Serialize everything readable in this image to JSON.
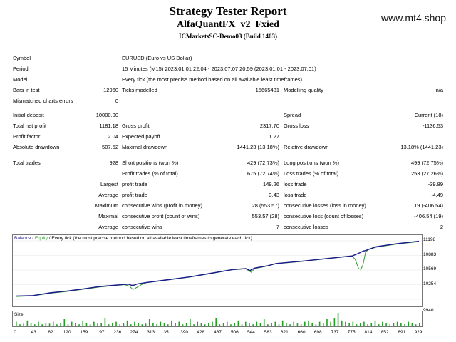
{
  "header": {
    "title": "Strategy Tester Report",
    "expert": "AlfaQuantFX_v2_Fxied",
    "server": "ICMarketsSC-Demo03 (Build 1403)",
    "watermark": "www.mt4.shop"
  },
  "info": {
    "symbol_label": "Symbol",
    "symbol_value": "EURUSD (Euro vs US Dollar)",
    "period_label": "Period",
    "period_value": "15 Minutes (M15) 2023.01.01 22:04 - 2023.07.07 20:59 (2023.01.01 - 2023.07.01)",
    "model_label": "Model",
    "model_value": "Every tick (the most precise method based on all available least timeframes)",
    "bars_label": "Bars in test",
    "bars_value": "12960",
    "ticks_label": "Ticks modelled",
    "ticks_value": "15665481",
    "quality_label": "Modelling quality",
    "quality_value": "n/a",
    "mismatch_label": "Mismatched charts errors",
    "mismatch_value": "0"
  },
  "stats": {
    "initial_deposit_label": "Initial deposit",
    "initial_deposit": "10000.00",
    "spread_label": "Spread",
    "spread": "Current (18)",
    "net_profit_label": "Total net profit",
    "net_profit": "1181.18",
    "gross_profit_label": "Gross profit",
    "gross_profit": "2317.70",
    "gross_loss_label": "Gross loss",
    "gross_loss": "-1136.53",
    "profit_factor_label": "Profit factor",
    "profit_factor": "2.04",
    "expected_payoff_label": "Expected payoff",
    "expected_payoff": "1.27",
    "abs_dd_label": "Absolute drawdown",
    "abs_dd": "507.52",
    "max_dd_label": "Maximal drawdown",
    "max_dd": "1441.23 (13.18%)",
    "rel_dd_label": "Relative drawdown",
    "rel_dd": "13.18% (1441.23)"
  },
  "trades": {
    "total_label": "Total trades",
    "total": "928",
    "short_label": "Short positions (won %)",
    "short": "429 (72.73%)",
    "long_label": "Long positions (won %)",
    "long": "499 (72.75%)",
    "profit_trades_label": "Profit trades (% of total)",
    "profit_trades": "675 (72.74%)",
    "loss_trades_label": "Loss trades (% of total)",
    "loss_trades": "253 (27.26%)",
    "largest_label": "Largest",
    "avg_label": "Average",
    "max_label": "Maximum",
    "maximal_label": "Maximal",
    "average2_label": "Average",
    "profit_trade_label": "profit trade",
    "loss_trade_label": "loss trade",
    "largest_profit": "149.26",
    "largest_loss": "-39.89",
    "avg_profit": "3.43",
    "avg_loss": "-4.49",
    "cons_wins_label": "consecutive wins (profit in money)",
    "cons_wins": "28 (553.57)",
    "cons_losses_label": "consecutive losses (loss in money)",
    "cons_losses": "19 (-406.54)",
    "cons_profit_label": "consecutive profit (count of wins)",
    "cons_profit": "553.57 (28)",
    "cons_loss_label": "consecutive loss (count of losses)",
    "cons_loss": "-406.54 (19)",
    "avg_cons_wins_label": "consecutive wins",
    "avg_cons_wins": "7",
    "avg_cons_losses_label": "consecutive losses",
    "avg_cons_losses": "2"
  },
  "chart_caption": {
    "balance": "Balance",
    "sep": " / ",
    "equity": "Equity",
    "rest": " / Every tick (the most precise method based on all available least timeframes to generate each tick)"
  },
  "volume_caption": "Size",
  "colors": {
    "balance": "#1a1a8c",
    "equity": "#2a9a2a",
    "volume": "#22a022"
  },
  "chart_data": {
    "type": "line",
    "x_ticks": [
      "0",
      "43",
      "82",
      "120",
      "159",
      "197",
      "236",
      "274",
      "313",
      "351",
      "390",
      "428",
      "467",
      "506",
      "544",
      "583",
      "621",
      "660",
      "698",
      "737",
      "775",
      "814",
      "852",
      "891",
      "929"
    ],
    "y_ticks": [
      "11198",
      "10883",
      "10569",
      "10254",
      "9940"
    ],
    "ylim": [
      9940,
      11198
    ],
    "xlim": [
      0,
      929
    ],
    "series": [
      {
        "name": "Balance",
        "x": [
          0,
          40,
          80,
          120,
          160,
          190,
          200,
          250,
          260,
          267,
          274,
          280,
          300,
          350,
          400,
          450,
          500,
          530,
          540,
          550,
          580,
          600,
          660,
          700,
          760,
          775,
          790,
          800,
          806,
          812,
          830,
          880,
          929
        ],
        "y": [
          10010,
          10020,
          10080,
          10120,
          10170,
          10210,
          10220,
          10260,
          10265,
          10240,
          10245,
          10270,
          10300,
          10360,
          10420,
          10500,
          10580,
          10600,
          10560,
          10610,
          10660,
          10710,
          10760,
          10800,
          10860,
          10872,
          10930,
          10975,
          10990,
          11010,
          11070,
          11140,
          11190
        ]
      },
      {
        "name": "Equity",
        "x": [
          0,
          40,
          80,
          120,
          160,
          190,
          200,
          250,
          262,
          270,
          278,
          290,
          300,
          350,
          400,
          450,
          500,
          530,
          543,
          550,
          580,
          600,
          660,
          700,
          760,
          775,
          782,
          786,
          790,
          795,
          800,
          806,
          812,
          830,
          880,
          929
        ],
        "y": [
          10000,
          10015,
          10070,
          10110,
          10160,
          10200,
          10210,
          10255,
          10225,
          10150,
          10190,
          10255,
          10295,
          10355,
          10415,
          10495,
          10575,
          10595,
          10520,
          10600,
          10655,
          10705,
          10755,
          10795,
          10855,
          10870,
          10800,
          10700,
          10600,
          10580,
          10680,
          10950,
          11005,
          11060,
          11130,
          11180
        ]
      }
    ],
    "volume": [
      0.3,
      0.1,
      0.15,
      0.4,
      0.2,
      0.1,
      0.3,
      0.1,
      0.2,
      0.15,
      0.3,
      0.1,
      0.2,
      0.5,
      0.1,
      0.3,
      0.2,
      0.1,
      0.4,
      0.2,
      0.1,
      0.3,
      0.15,
      0.2,
      0.6,
      0.1,
      0.2,
      0.3,
      0.1,
      0.2,
      0.4,
      0.1,
      0.3,
      0.2,
      0.1,
      0.15,
      0.5,
      0.2,
      0.1,
      0.3,
      0.2,
      0.1,
      0.4,
      0.2,
      0.3,
      0.1,
      0.2,
      0.5,
      0.1,
      0.3,
      0.2,
      0.1,
      0.2,
      0.3,
      0.6,
      0.1,
      0.2,
      0.3,
      0.1,
      0.2,
      0.4,
      0.1,
      0.3,
      0.2,
      0.1,
      0.3,
      0.2,
      0.5,
      0.1,
      0.2,
      0.3,
      0.1,
      0.4,
      0.2,
      0.1,
      0.3,
      0.2,
      0.1,
      0.3,
      0.4,
      0.2,
      0.1,
      0.3,
      0.2,
      0.5,
      0.3,
      0.6,
      1.0,
      0.4,
      0.3,
      0.2,
      0.3,
      0.1,
      0.2,
      0.3,
      0.1,
      0.2,
      0.4,
      0.1,
      0.3,
      0.2,
      0.1,
      0.2,
      0.3,
      0.2,
      0.1,
      0.3,
      0.2,
      0.1,
      0.2
    ]
  }
}
